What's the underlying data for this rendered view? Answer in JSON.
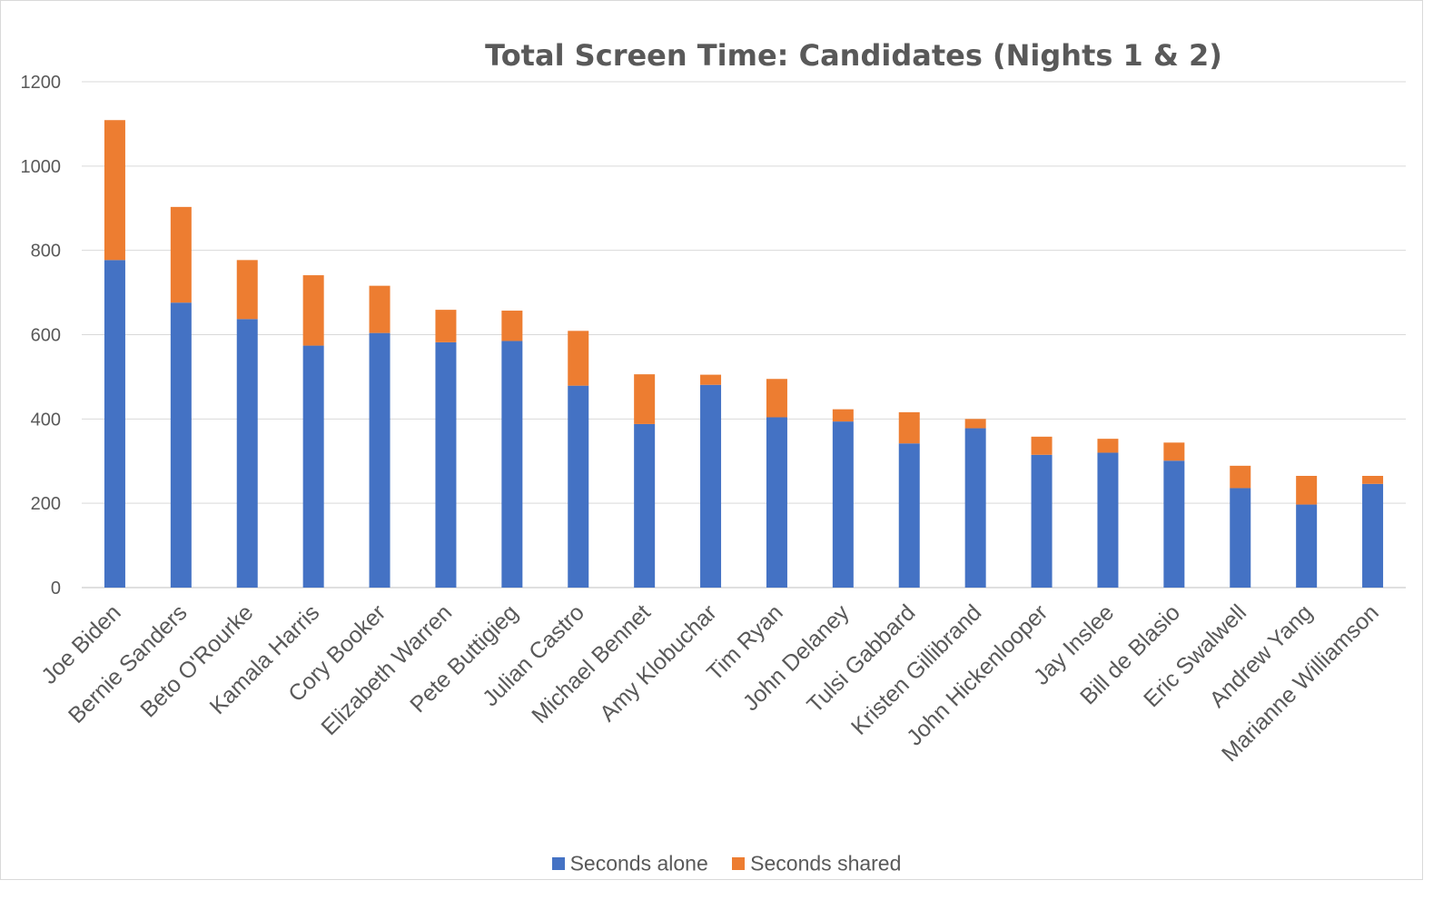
{
  "chart_data": {
    "type": "bar",
    "stacked": true,
    "title": "Total Screen Time: Candidates (Nights 1 & 2)",
    "xlabel": "",
    "ylabel": "",
    "ylim": [
      0,
      1200
    ],
    "yticks": [
      0,
      200,
      400,
      600,
      800,
      1000,
      1200
    ],
    "grid": true,
    "legend_position": "bottom",
    "categories": [
      "Joe Biden",
      "Bernie Sanders",
      "Beto O'Rourke",
      "Kamala Harris",
      "Cory Booker",
      "Elizabeth Warren",
      "Pete Buttigieg",
      "Julian Castro",
      "Michael Bennet",
      "Amy Klobuchar",
      "Tim Ryan",
      "John Delaney",
      "Tulsi Gabbard",
      "Kristen Gillibrand",
      "John Hickenlooper",
      "Jay Inslee",
      "Bill de Blasio",
      "Eric Swalwell",
      "Andrew Yang",
      "Marianne Williamson"
    ],
    "series": [
      {
        "name": "Seconds alone",
        "color": "#4472C4",
        "values": [
          777,
          676,
          637,
          574,
          604,
          582,
          585,
          479,
          388,
          481,
          404,
          394,
          342,
          378,
          315,
          320,
          301,
          236,
          197,
          246
        ]
      },
      {
        "name": "Seconds shared",
        "color": "#ED7D31",
        "values": [
          332,
          227,
          140,
          167,
          112,
          77,
          72,
          130,
          118,
          24,
          91,
          29,
          74,
          22,
          43,
          33,
          43,
          53,
          68,
          19
        ]
      }
    ]
  }
}
